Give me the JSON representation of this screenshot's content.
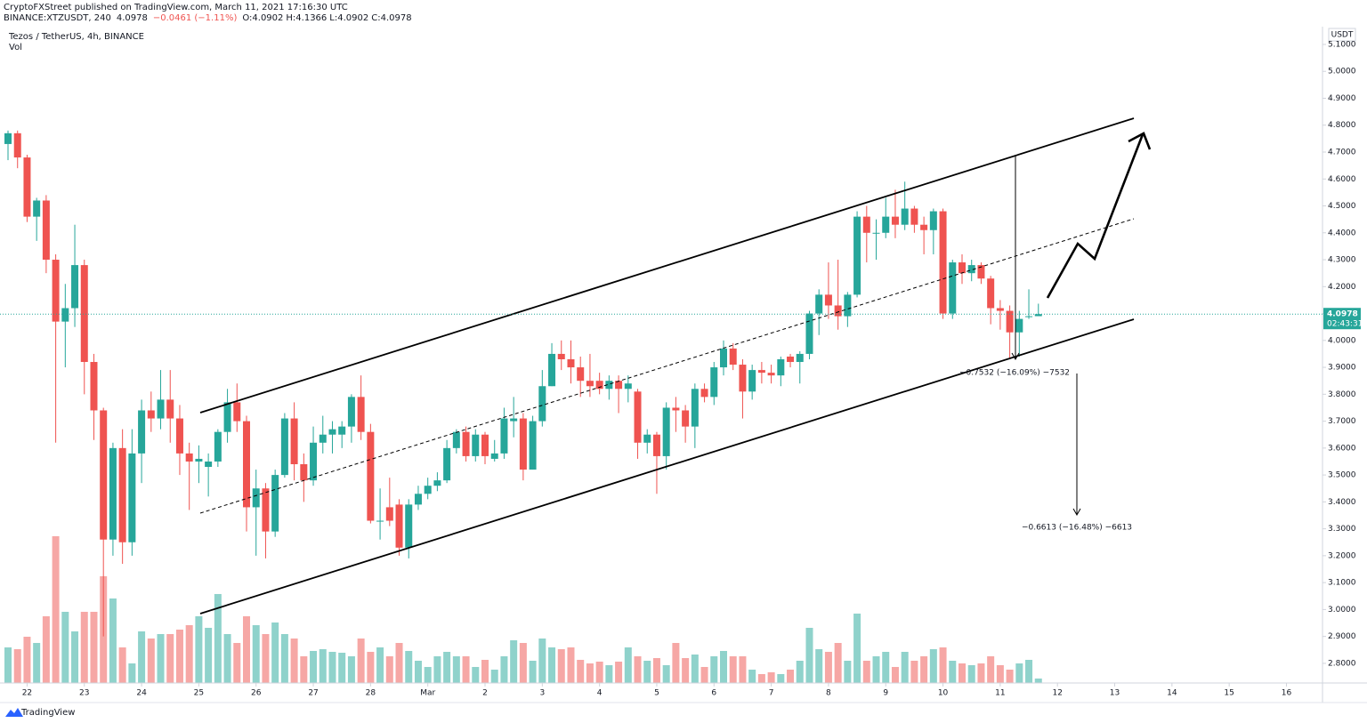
{
  "header": {
    "publisher_line": "CryptoFXStreet published on TradingView.com, March 11, 2021 17:16:30 UTC",
    "symbol": "BINANCE:XTZUSDT, 240",
    "last": "4.0978",
    "change": "−0.0461 (−1.11%)",
    "ohlc": [
      "O:4.0902",
      "H:4.1366",
      "L:4.0902",
      "C:4.0978"
    ]
  },
  "footer": {
    "brand": "TradingView"
  },
  "chart_data": {
    "type": "candlestick",
    "title": "Tezos / TetherUS, 4h, BINANCE",
    "volume_label": "Vol",
    "y_axis_unit": "USDT",
    "up_color": "#26a69a",
    "down_color": "#ef5350",
    "up_volume_color": "#8fd2cb",
    "down_volume_color": "#f6a7a5",
    "open": [
      4.73,
      4.77,
      4.68,
      4.46,
      4.52,
      4.3,
      4.07,
      4.12,
      4.28,
      3.92,
      3.74,
      3.26,
      3.6,
      3.25,
      3.58,
      3.74,
      3.71,
      3.78,
      3.71,
      3.58,
      3.55,
      3.53,
      3.55,
      3.66,
      3.77,
      3.7,
      3.38,
      3.45,
      3.29,
      3.5,
      3.71,
      3.54,
      3.48,
      3.62,
      3.65,
      3.65,
      3.68,
      3.79,
      3.66,
      3.33,
      3.38,
      3.39,
      3.23,
      3.39,
      3.43,
      3.46,
      3.48,
      3.6,
      3.66,
      3.57,
      3.65,
      3.56,
      3.58,
      3.7,
      3.71,
      3.52,
      3.7,
      3.83,
      3.95,
      3.93,
      3.9,
      3.85,
      3.85,
      3.82,
      3.85,
      3.82,
      3.81,
      3.62,
      3.65,
      3.57,
      3.75,
      3.74,
      3.68,
      3.82,
      3.79,
      3.9,
      3.97,
      3.91,
      3.81,
      3.89,
      3.88,
      3.87,
      3.94,
      3.92,
      3.95,
      4.1,
      4.17,
      4.13,
      4.09,
      4.17,
      4.46,
      4.4,
      4.4,
      4.46,
      4.43,
      4.49,
      4.43,
      4.41,
      4.48,
      4.1,
      4.29,
      4.25,
      4.28,
      4.23,
      4.12,
      4.11,
      4.03,
      4.09,
      4.0902
    ],
    "high": [
      4.78,
      4.78,
      4.69,
      4.53,
      4.54,
      4.32,
      4.21,
      4.43,
      4.3,
      3.95,
      3.75,
      3.62,
      3.67,
      3.67,
      3.78,
      3.81,
      3.89,
      3.89,
      3.76,
      3.62,
      3.61,
      3.58,
      3.67,
      3.82,
      3.84,
      3.72,
      3.52,
      3.47,
      3.52,
      3.73,
      3.77,
      3.58,
      3.68,
      3.72,
      3.7,
      3.7,
      3.8,
      3.87,
      3.69,
      3.45,
      3.49,
      3.41,
      3.41,
      3.46,
      3.49,
      3.51,
      3.63,
      3.67,
      3.68,
      3.67,
      3.66,
      3.63,
      3.75,
      3.79,
      3.73,
      3.72,
      3.89,
      3.99,
      4.0,
      4.0,
      3.94,
      3.95,
      3.88,
      3.87,
      3.87,
      3.87,
      3.82,
      3.67,
      3.66,
      3.77,
      3.79,
      3.76,
      3.84,
      3.84,
      3.92,
      4.0,
      3.99,
      3.93,
      3.91,
      3.92,
      3.91,
      3.94,
      3.95,
      3.96,
      4.11,
      4.19,
      4.29,
      4.3,
      4.18,
      4.48,
      4.5,
      4.45,
      4.53,
      4.56,
      4.59,
      4.5,
      4.46,
      4.49,
      4.49,
      4.3,
      4.32,
      4.3,
      4.29,
      4.24,
      4.15,
      4.13,
      4.11,
      4.19,
      4.1366
    ],
    "low": [
      4.67,
      4.64,
      4.44,
      4.37,
      4.25,
      3.62,
      3.9,
      4.05,
      3.8,
      3.63,
      2.9,
      3.2,
      3.17,
      3.2,
      3.47,
      3.66,
      3.67,
      3.62,
      3.5,
      3.37,
      3.47,
      3.42,
      3.53,
      3.62,
      3.66,
      3.29,
      3.2,
      3.19,
      3.27,
      3.49,
      3.48,
      3.4,
      3.46,
      3.58,
      3.58,
      3.6,
      3.62,
      3.63,
      3.32,
      3.26,
      3.31,
      3.2,
      3.19,
      3.37,
      3.41,
      3.44,
      3.47,
      3.58,
      3.55,
      3.55,
      3.54,
      3.55,
      3.56,
      3.64,
      3.48,
      3.52,
      3.68,
      3.83,
      3.89,
      3.84,
      3.79,
      3.79,
      3.8,
      3.78,
      3.73,
      3.77,
      3.56,
      3.58,
      3.43,
      3.52,
      3.66,
      3.62,
      3.6,
      3.77,
      3.76,
      3.87,
      3.89,
      3.71,
      3.78,
      3.84,
      3.84,
      3.83,
      3.9,
      3.84,
      3.93,
      4.02,
      4.08,
      4.04,
      4.05,
      4.16,
      4.29,
      4.3,
      4.38,
      4.38,
      4.41,
      4.4,
      4.32,
      4.32,
      4.08,
      4.08,
      4.21,
      4.22,
      4.21,
      4.06,
      4.04,
      3.93,
      3.94,
      4.08,
      4.0902
    ],
    "close": [
      4.77,
      4.68,
      4.46,
      4.52,
      4.3,
      4.07,
      4.12,
      4.28,
      3.92,
      3.74,
      3.26,
      3.6,
      3.25,
      3.58,
      3.74,
      3.71,
      3.78,
      3.71,
      3.58,
      3.55,
      3.56,
      3.55,
      3.66,
      3.77,
      3.7,
      3.38,
      3.45,
      3.29,
      3.5,
      3.71,
      3.54,
      3.48,
      3.62,
      3.65,
      3.67,
      3.68,
      3.79,
      3.66,
      3.33,
      3.33,
      3.33,
      3.23,
      3.39,
      3.43,
      3.46,
      3.48,
      3.6,
      3.66,
      3.57,
      3.65,
      3.57,
      3.58,
      3.71,
      3.71,
      3.52,
      3.7,
      3.83,
      3.95,
      3.93,
      3.9,
      3.85,
      3.83,
      3.82,
      3.85,
      3.82,
      3.84,
      3.62,
      3.65,
      3.57,
      3.75,
      3.74,
      3.68,
      3.82,
      3.79,
      3.9,
      3.97,
      3.91,
      3.81,
      3.89,
      3.88,
      3.87,
      3.93,
      3.92,
      3.95,
      4.1,
      4.17,
      4.13,
      4.09,
      4.17,
      4.46,
      4.4,
      4.4,
      4.46,
      4.43,
      4.49,
      4.43,
      4.41,
      4.48,
      4.1,
      4.29,
      4.25,
      4.28,
      4.23,
      4.12,
      4.11,
      4.03,
      4.08,
      4.09,
      4.0978
    ],
    "volume": [
      40,
      38,
      52,
      45,
      75,
      165,
      80,
      58,
      80,
      80,
      120,
      95,
      40,
      22,
      58,
      50,
      55,
      55,
      60,
      65,
      75,
      62,
      100,
      55,
      45,
      75,
      65,
      55,
      68,
      55,
      50,
      30,
      36,
      38,
      35,
      34,
      30,
      50,
      35,
      40,
      30,
      45,
      36,
      25,
      18,
      30,
      35,
      30,
      30,
      18,
      26,
      15,
      30,
      48,
      45,
      25,
      50,
      40,
      38,
      40,
      26,
      22,
      24,
      20,
      24,
      40,
      30,
      25,
      28,
      20,
      45,
      28,
      32,
      18,
      30,
      36,
      30,
      30,
      15,
      10,
      12,
      10,
      15,
      25,
      62,
      38,
      35,
      45,
      25,
      78,
      25,
      30,
      35,
      18,
      35,
      25,
      30,
      38,
      40,
      25,
      22,
      20,
      22,
      30,
      20,
      15,
      22,
      26,
      5
    ],
    "last_price": 4.0978,
    "countdown": "02:43:31",
    "ylim": [
      2.727,
      5.166
    ],
    "yticks": [
      {
        "value": 2.8,
        "label": "2.8000"
      },
      {
        "value": 2.9,
        "label": "2.9000"
      },
      {
        "value": 3.0,
        "label": "3.0000"
      },
      {
        "value": 3.1,
        "label": "3.1000"
      },
      {
        "value": 3.2,
        "label": "3.2000"
      },
      {
        "value": 3.3,
        "label": "3.3000"
      },
      {
        "value": 3.4,
        "label": "3.4000"
      },
      {
        "value": 3.5,
        "label": "3.5000"
      },
      {
        "value": 3.6,
        "label": "3.6000"
      },
      {
        "value": 3.7,
        "label": "3.7000"
      },
      {
        "value": 3.8,
        "label": "3.8000"
      },
      {
        "value": 3.9,
        "label": "3.9000"
      },
      {
        "value": 4.0,
        "label": "4.0000"
      },
      {
        "value": 4.1,
        "label": "4.1000"
      },
      {
        "value": 4.2,
        "label": "4.2000"
      },
      {
        "value": 4.3,
        "label": "4.3000"
      },
      {
        "value": 4.4,
        "label": "4.4000"
      },
      {
        "value": 4.5,
        "label": "4.5000"
      },
      {
        "value": 4.6,
        "label": "4.6000"
      },
      {
        "value": 4.7,
        "label": "4.7000"
      },
      {
        "value": 4.8,
        "label": "4.8000"
      },
      {
        "value": 4.9,
        "label": "4.9000"
      },
      {
        "value": 5.0,
        "label": "5.0000"
      },
      {
        "value": 5.1,
        "label": "5.1000"
      }
    ],
    "xlim": [
      -0.84,
      137.78
    ],
    "xticks": [
      {
        "value": 2,
        "label": "22"
      },
      {
        "value": 8,
        "label": "23"
      },
      {
        "value": 14,
        "label": "24"
      },
      {
        "value": 20,
        "label": "25"
      },
      {
        "value": 26,
        "label": "26"
      },
      {
        "value": 32,
        "label": "27"
      },
      {
        "value": 38,
        "label": "28"
      },
      {
        "value": 44,
        "label": "Mar"
      },
      {
        "value": 50,
        "label": "2"
      },
      {
        "value": 56,
        "label": "3"
      },
      {
        "value": 62,
        "label": "4"
      },
      {
        "value": 68,
        "label": "5"
      },
      {
        "value": 74,
        "label": "6"
      },
      {
        "value": 80,
        "label": "7"
      },
      {
        "value": 86,
        "label": "8"
      },
      {
        "value": 92,
        "label": "9"
      },
      {
        "value": 98,
        "label": "10"
      },
      {
        "value": 104,
        "label": "11"
      },
      {
        "value": 110,
        "label": "12"
      },
      {
        "value": 116,
        "label": "13"
      },
      {
        "value": 122,
        "label": "14"
      },
      {
        "value": 128,
        "label": "15"
      },
      {
        "value": 134,
        "label": "16"
      }
    ],
    "annotations": [
      "−0.7532 (−16.09%) −7532",
      "−0.6613 (−16.48%) −6613"
    ]
  }
}
